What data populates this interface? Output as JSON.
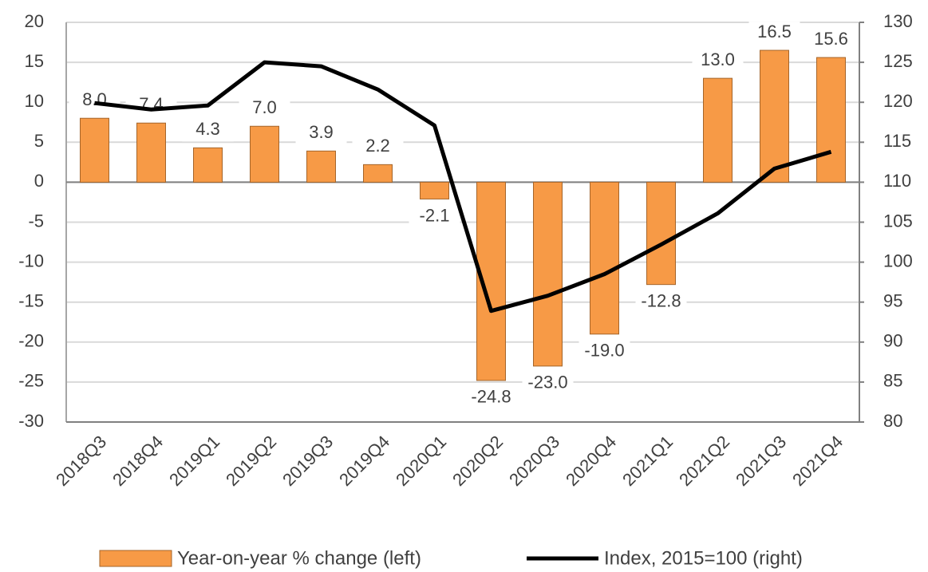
{
  "chart_data": {
    "type": "bar-line",
    "categories": [
      "2018Q3",
      "2018Q4",
      "2019Q1",
      "2019Q2",
      "2019Q3",
      "2019Q4",
      "2020Q1",
      "2020Q2",
      "2020Q3",
      "2020Q4",
      "2021Q1",
      "2021Q2",
      "2021Q3",
      "2021Q4"
    ],
    "series": [
      {
        "name": "Year-on-year % change (left)",
        "type": "bar",
        "color": "#f79a46",
        "axis": "y",
        "values": [
          8.0,
          7.4,
          4.3,
          7.0,
          3.9,
          2.2,
          -2.1,
          -24.8,
          -23.0,
          -19.0,
          -12.8,
          13.0,
          16.5,
          15.6
        ],
        "value_labels": [
          "8.0",
          "7.4",
          "4.3",
          "7.0",
          "3.9",
          "2.2",
          "-2.1",
          "-24.8",
          "-23.0",
          "-19.0",
          "-12.8",
          "13.0",
          "16.5",
          "15.6"
        ]
      },
      {
        "name": "Index, 2015=100 (right)",
        "type": "line",
        "color": "#000000",
        "axis": "y2",
        "values": [
          119.9,
          119.1,
          119.6,
          125.0,
          124.5,
          121.6,
          117.1,
          93.9,
          95.8,
          98.5,
          102.2,
          106.1,
          111.7,
          113.8
        ]
      }
    ],
    "ylim": [
      -30,
      20
    ],
    "yticks": [
      -30,
      -25,
      -20,
      -15,
      -10,
      -5,
      0,
      5,
      10,
      15,
      20
    ],
    "y2lim": [
      80,
      130
    ],
    "y2ticks": [
      80,
      85,
      90,
      95,
      100,
      105,
      110,
      115,
      120,
      125,
      130
    ],
    "grid": true,
    "legend": "bottom"
  }
}
